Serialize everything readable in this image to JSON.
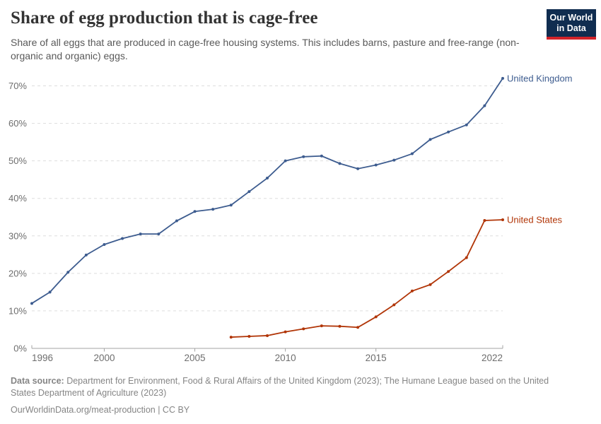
{
  "header": {
    "title": "Share of egg production that is cage-free",
    "subtitle": "Share of all eggs that are produced in cage-free housing systems. This includes barns, pasture and free-range (non-organic and organic) eggs.",
    "logo": {
      "line1": "Our World",
      "line2": "in Data",
      "bg_color": "#102d50",
      "accent_color": "#d1232a"
    }
  },
  "chart_data": {
    "type": "line",
    "title": "Share of egg production that is cage-free",
    "xlabel": "",
    "ylabel": "",
    "x_range": [
      1996,
      2022
    ],
    "ylim": [
      0,
      72
    ],
    "y_ticks": [
      0,
      10,
      20,
      30,
      40,
      50,
      60,
      70
    ],
    "y_tick_suffix": "%",
    "x_ticks": [
      1996,
      2000,
      2005,
      2010,
      2015,
      2022
    ],
    "grid": "horizontal-dashed",
    "legend_position": "line-end-labels",
    "series": [
      {
        "name": "United Kingdom",
        "color": "#3d5c8f",
        "x": [
          1996,
          1997,
          1998,
          1999,
          2000,
          2001,
          2002,
          2003,
          2004,
          2005,
          2006,
          2007,
          2008,
          2009,
          2010,
          2011,
          2012,
          2013,
          2014,
          2015,
          2016,
          2017,
          2018,
          2019,
          2020,
          2021,
          2022
        ],
        "values": [
          12,
          15,
          20.3,
          24.9,
          27.7,
          29.3,
          30.5,
          30.5,
          34,
          36.5,
          37.1,
          38.2,
          41.8,
          45.4,
          50,
          51.1,
          51.3,
          49.3,
          47.9,
          48.9,
          50.2,
          51.9,
          55.7,
          57.7,
          59.6,
          64.7,
          72
        ]
      },
      {
        "name": "United States",
        "color": "#b13507",
        "x": [
          2007,
          2008,
          2009,
          2010,
          2011,
          2012,
          2013,
          2014,
          2015,
          2016,
          2017,
          2018,
          2019,
          2020,
          2021,
          2022
        ],
        "values": [
          3,
          3.2,
          3.4,
          4.4,
          5.2,
          6,
          5.9,
          5.6,
          8.4,
          11.6,
          15.3,
          17,
          20.5,
          24.2,
          34.1,
          34.3
        ]
      }
    ]
  },
  "footer": {
    "source_label": "Data source:",
    "source_text": " Department for Environment, Food & Rural Affairs of the United Kingdom (2023); The Humane League based on the United States Department of Agriculture (2023)",
    "license": "OurWorldinData.org/meat-production | CC BY"
  }
}
